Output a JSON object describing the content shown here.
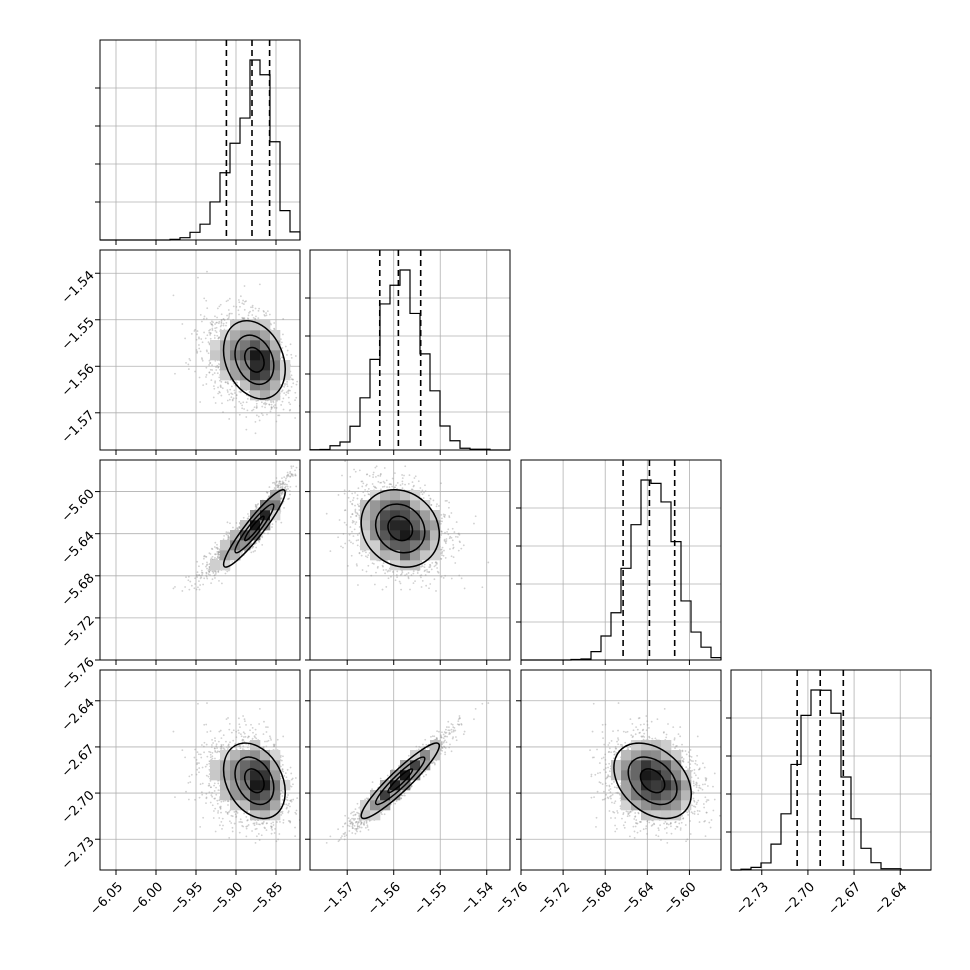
{
  "chart_data": {
    "type": "corner",
    "title": "",
    "parameters": [
      {
        "xlim": [
          -6.07,
          -5.82
        ],
        "ticks": [
          -6.05,
          -6.0,
          -5.95,
          -5.9,
          -5.85
        ],
        "tick_labels": [
          "−6.05",
          "−6.00",
          "−5.95",
          "−5.90",
          "−5.85"
        ],
        "mean": -5.877,
        "sd": 0.022,
        "skew": -4.5
      },
      {
        "xlim": [
          -1.578,
          -1.535
        ],
        "ticks": [
          -1.57,
          -1.56,
          -1.55,
          -1.54
        ],
        "tick_labels": [
          "−1.57",
          "−1.56",
          "−1.55",
          "−1.54"
        ],
        "mean": -1.5586,
        "sd": 0.0048,
        "skew": 0
      },
      {
        "xlim": [
          -5.76,
          -5.57
        ],
        "ticks": [
          -5.76,
          -5.72,
          -5.68,
          -5.64,
          -5.6
        ],
        "tick_labels": [
          "−5.76",
          "−5.72",
          "−5.68",
          "−5.64",
          "−5.60"
        ],
        "mean": -5.635,
        "sd": 0.021,
        "skew": 0
      },
      {
        "xlim": [
          -2.75,
          -2.62
        ],
        "ticks": [
          -2.73,
          -2.7,
          -2.67,
          -2.64
        ],
        "tick_labels": [
          "−2.73",
          "−2.70",
          "−2.67",
          "−2.64"
        ],
        "mean": -2.692,
        "sd": 0.014,
        "skew": 0
      }
    ],
    "quantile_lines": [
      [
        -5.912,
        -5.88,
        -5.858
      ],
      [
        -1.563,
        -1.559,
        -1.5542
      ],
      [
        -5.663,
        -5.638,
        -5.614
      ],
      [
        -2.707,
        -2.692,
        -2.677
      ]
    ],
    "pair_correlations": {
      "1-0": -0.25,
      "2-0": 0.93,
      "2-1": -0.15,
      "3-0": -0.3,
      "3-1": 0.93,
      "3-2": -0.35
    },
    "grid": true,
    "histogram_bins": 20,
    "contour_levels": 3,
    "point_color": "#999999",
    "line_color": "#000000"
  }
}
